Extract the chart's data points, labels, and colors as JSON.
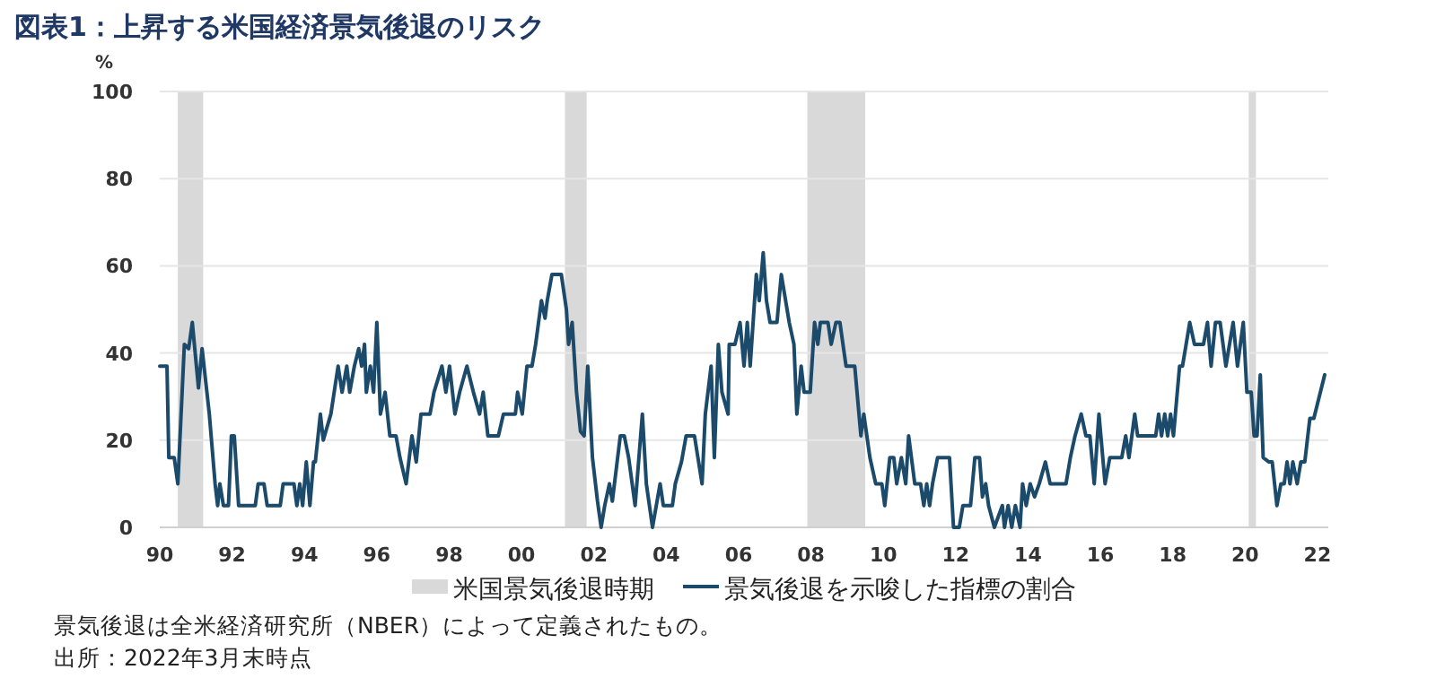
{
  "chart_data": {
    "type": "line",
    "title": "図表1：上昇する米国経済景気後退のリスク",
    "ylabel": "%",
    "xlim": [
      1990,
      2022.3
    ],
    "ylim": [
      0,
      100
    ],
    "xticks": [
      {
        "value": 1990,
        "label": "90"
      },
      {
        "value": 1992,
        "label": "92"
      },
      {
        "value": 1994,
        "label": "94"
      },
      {
        "value": 1996,
        "label": "96"
      },
      {
        "value": 1998,
        "label": "98"
      },
      {
        "value": 2000,
        "label": "00"
      },
      {
        "value": 2002,
        "label": "02"
      },
      {
        "value": 2004,
        "label": "04"
      },
      {
        "value": 2006,
        "label": "06"
      },
      {
        "value": 2008,
        "label": "08"
      },
      {
        "value": 2010,
        "label": "10"
      },
      {
        "value": 2012,
        "label": "12"
      },
      {
        "value": 2014,
        "label": "14"
      },
      {
        "value": 2016,
        "label": "16"
      },
      {
        "value": 2018,
        "label": "18"
      },
      {
        "value": 2020,
        "label": "20"
      },
      {
        "value": 2022,
        "label": "22"
      }
    ],
    "yticks": [
      0,
      20,
      40,
      60,
      80,
      100
    ],
    "grid": "y",
    "legend": "bottom",
    "bands": [
      {
        "axis": "x",
        "from": 1990.5,
        "to": 1991.2,
        "label": "米国景気後退時期",
        "color": "#d9d9d9"
      },
      {
        "axis": "x",
        "from": 2001.2,
        "to": 2001.8,
        "color": "#d9d9d9"
      },
      {
        "axis": "x",
        "from": 2007.9,
        "to": 2009.5,
        "color": "#d9d9d9"
      },
      {
        "axis": "x",
        "from": 2020.1,
        "to": 2020.3,
        "color": "#d9d9d9"
      }
    ],
    "series": [
      {
        "name": "景気後退を示唆した指標の割合",
        "color": "#1b4a6b",
        "x": [
          1990.0,
          1990.2,
          1990.25,
          1990.4,
          1990.5,
          1990.68,
          1990.8,
          1990.9,
          1991.07,
          1991.17,
          1991.37,
          1991.53,
          1991.6,
          1991.66,
          1991.76,
          1991.9,
          1991.98,
          1992.06,
          1992.18,
          1992.64,
          1992.72,
          1992.88,
          1992.97,
          1993.33,
          1993.41,
          1993.71,
          1993.79,
          1993.87,
          1993.95,
          1994.05,
          1994.15,
          1994.25,
          1994.3,
          1994.44,
          1994.52,
          1994.73,
          1994.93,
          1995.04,
          1995.17,
          1995.25,
          1995.38,
          1995.5,
          1995.58,
          1995.66,
          1995.71,
          1995.82,
          1995.91,
          1996.0,
          1996.1,
          1996.23,
          1996.36,
          1996.53,
          1996.64,
          1996.81,
          1996.97,
          1997.09,
          1997.22,
          1997.47,
          1997.58,
          1997.8,
          1997.91,
          1998.01,
          1998.16,
          1998.29,
          1998.49,
          1998.67,
          1998.84,
          1998.94,
          1999.07,
          1999.36,
          1999.5,
          1999.83,
          1999.89,
          2000.02,
          2000.15,
          2000.29,
          2000.39,
          2000.55,
          2000.65,
          2000.71,
          2000.84,
          2001.1,
          2001.24,
          2001.3,
          2001.4,
          2001.52,
          2001.63,
          2001.73,
          2001.83,
          2001.96,
          2002.1,
          2002.2,
          2002.3,
          2002.43,
          2002.51,
          2002.73,
          2002.84,
          2002.96,
          2003.14,
          2003.34,
          2003.45,
          2003.62,
          2003.83,
          2003.92,
          2004.17,
          2004.25,
          2004.42,
          2004.55,
          2004.78,
          2004.99,
          2005.08,
          2005.24,
          2005.33,
          2005.44,
          2005.54,
          2005.71,
          2005.74,
          2005.9,
          2006.04,
          2006.15,
          2006.24,
          2006.32,
          2006.49,
          2006.57,
          2006.68,
          2006.77,
          2006.87,
          2007.06,
          2007.18,
          2007.4,
          2007.53,
          2007.61,
          2007.73,
          2007.81,
          2007.98,
          2008.1,
          2008.19,
          2008.26,
          2008.47,
          2008.56,
          2008.69,
          2008.8,
          2008.97,
          2009.21,
          2009.38,
          2009.46,
          2009.63,
          2009.79,
          2009.96,
          2010.04,
          2010.18,
          2010.29,
          2010.37,
          2010.5,
          2010.62,
          2010.7,
          2010.87,
          2011.03,
          2011.12,
          2011.2,
          2011.28,
          2011.36,
          2011.5,
          2011.83,
          2011.94,
          2012.1,
          2012.2,
          2012.41,
          2012.53,
          2012.66,
          2012.74,
          2012.83,
          2012.91,
          2013.07,
          2013.29,
          2013.35,
          2013.45,
          2013.55,
          2013.65,
          2013.78,
          2013.85,
          2013.95,
          2014.06,
          2014.18,
          2014.31,
          2014.48,
          2014.61,
          2015.05,
          2015.17,
          2015.3,
          2015.47,
          2015.6,
          2015.71,
          2015.83,
          2015.96,
          2016.13,
          2016.26,
          2016.59,
          2016.7,
          2016.79,
          2016.95,
          2017.03,
          2017.53,
          2017.61,
          2017.69,
          2017.78,
          2017.86,
          2017.94,
          2018.02,
          2018.19,
          2018.27,
          2018.47,
          2018.6,
          2018.85,
          2018.96,
          2019.06,
          2019.18,
          2019.31,
          2019.47,
          2019.67,
          2019.79,
          2019.95,
          2020.05,
          2020.17,
          2020.25,
          2020.33,
          2020.42,
          2020.5,
          2020.66,
          2020.75,
          2020.88,
          2020.99,
          2021.08,
          2021.16,
          2021.24,
          2021.32,
          2021.44,
          2021.54,
          2021.65,
          2021.79,
          2021.9,
          2022.2
        ],
        "values": [
          37,
          37,
          16,
          16,
          10,
          42,
          41,
          47,
          32,
          41,
          26,
          10,
          5,
          10,
          5,
          5,
          21,
          21,
          5,
          5,
          10,
          10,
          5,
          5,
          10,
          10,
          5,
          10,
          5,
          15,
          5,
          15,
          15,
          26,
          20,
          26,
          37,
          31,
          37,
          31,
          37,
          41,
          37,
          42,
          31,
          37,
          31,
          47,
          26,
          31,
          21,
          21,
          16,
          10,
          21,
          15,
          26,
          26,
          31,
          37,
          31,
          37,
          26,
          31,
          37,
          31,
          26,
          31,
          21,
          21,
          26,
          26,
          31,
          26,
          37,
          37,
          42,
          52,
          48,
          52,
          58,
          58,
          50,
          42,
          47,
          31,
          22,
          21,
          37,
          16,
          6,
          0,
          5,
          10,
          6,
          21,
          21,
          16,
          5,
          26,
          10,
          0,
          10,
          5,
          5,
          10,
          15,
          21,
          21,
          10,
          26,
          37,
          16,
          42,
          31,
          26,
          42,
          42,
          47,
          37,
          47,
          37,
          58,
          52,
          63,
          52,
          47,
          47,
          58,
          47,
          42,
          26,
          37,
          31,
          31,
          47,
          42,
          47,
          47,
          42,
          47,
          47,
          37,
          37,
          21,
          26,
          16,
          10,
          10,
          5,
          16,
          16,
          10,
          16,
          10,
          21,
          10,
          10,
          5,
          10,
          5,
          10,
          16,
          16,
          0,
          0,
          5,
          5,
          16,
          16,
          7,
          10,
          5,
          0,
          5,
          0,
          5,
          0,
          5,
          0,
          10,
          5,
          10,
          7,
          10,
          15,
          10,
          10,
          16,
          21,
          26,
          21,
          21,
          10,
          26,
          10,
          16,
          16,
          21,
          16,
          26,
          21,
          21,
          26,
          21,
          26,
          21,
          26,
          21,
          37,
          37,
          47,
          42,
          42,
          47,
          37,
          47,
          47,
          37,
          47,
          37,
          47,
          31,
          31,
          21,
          21,
          35,
          16,
          15,
          15,
          5,
          10,
          10,
          15,
          10,
          15,
          10,
          15,
          15,
          25,
          25,
          35
        ]
      }
    ],
    "annotations": [
      "景気後退は全米経済研究所（NBER）によって定義されたもの。",
      "出所：2022年3月末時点"
    ]
  }
}
